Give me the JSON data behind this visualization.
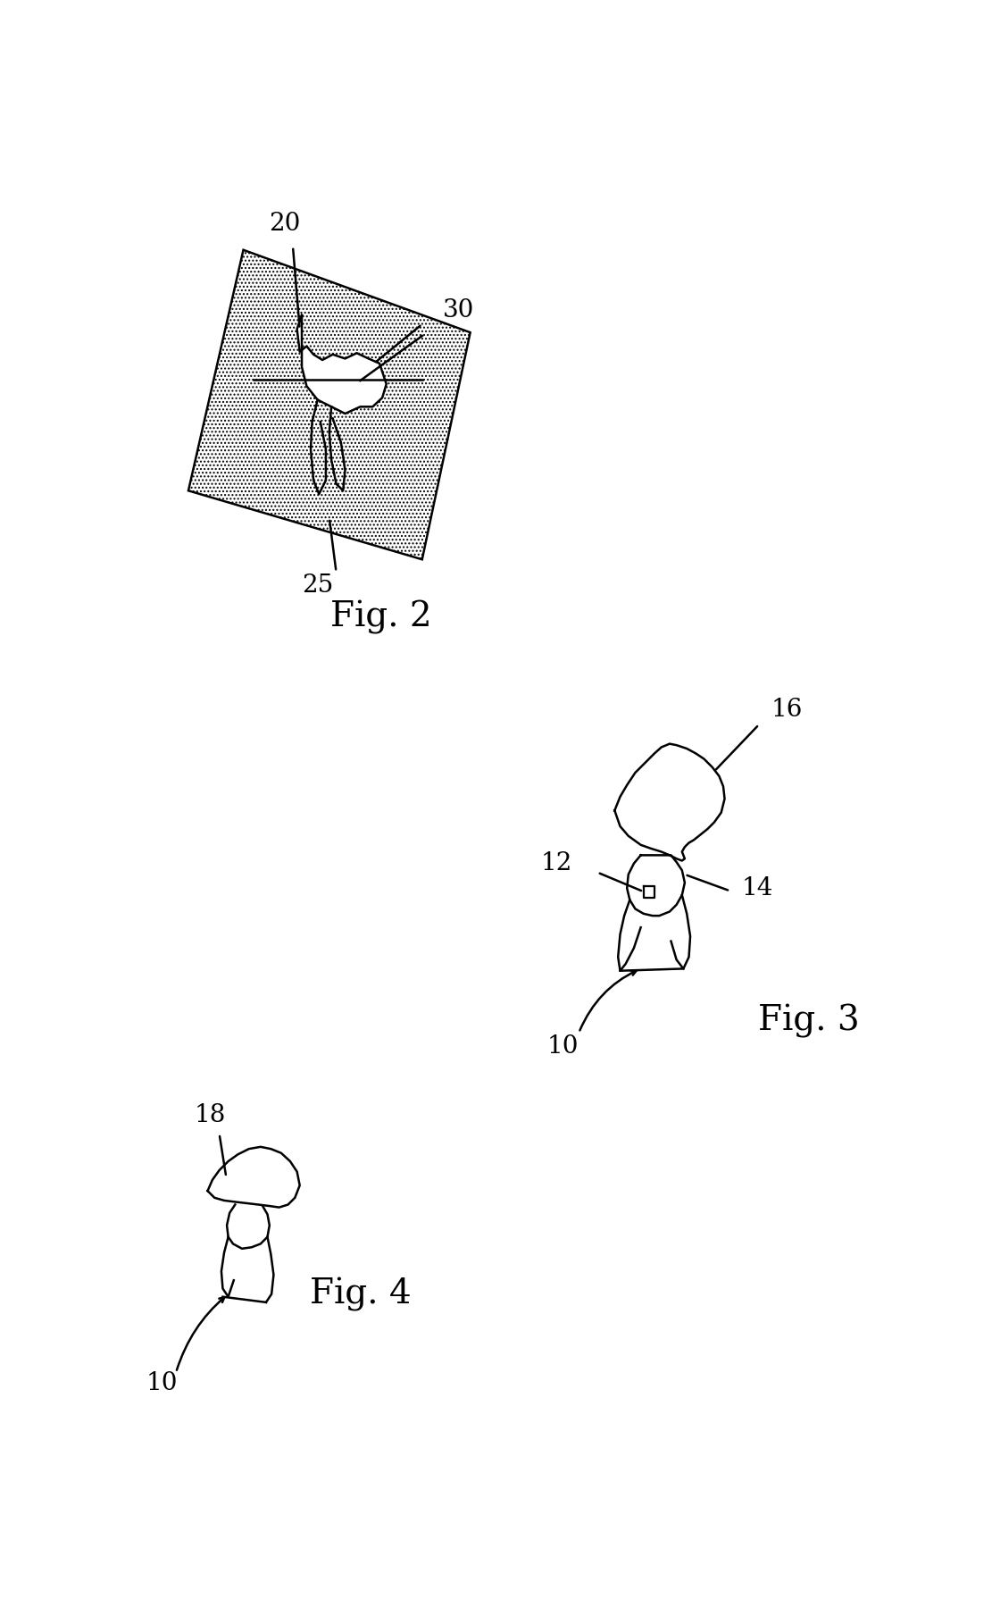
{
  "bg_color": "#ffffff",
  "fig_width": 11.11,
  "fig_height": 18.18,
  "fig2_label": "Fig. 2",
  "fig3_label": "Fig. 3",
  "fig4_label": "Fig. 4",
  "label_20": "20",
  "label_25": "25",
  "label_30": "30",
  "label_10_fig3": "10",
  "label_12": "12",
  "label_14": "14",
  "label_16": "16",
  "label_10_fig4": "10",
  "label_18": "18",
  "line_color": "#000000",
  "line_width": 1.8,
  "annotation_fontsize": 20,
  "fig_label_fontsize": 28
}
